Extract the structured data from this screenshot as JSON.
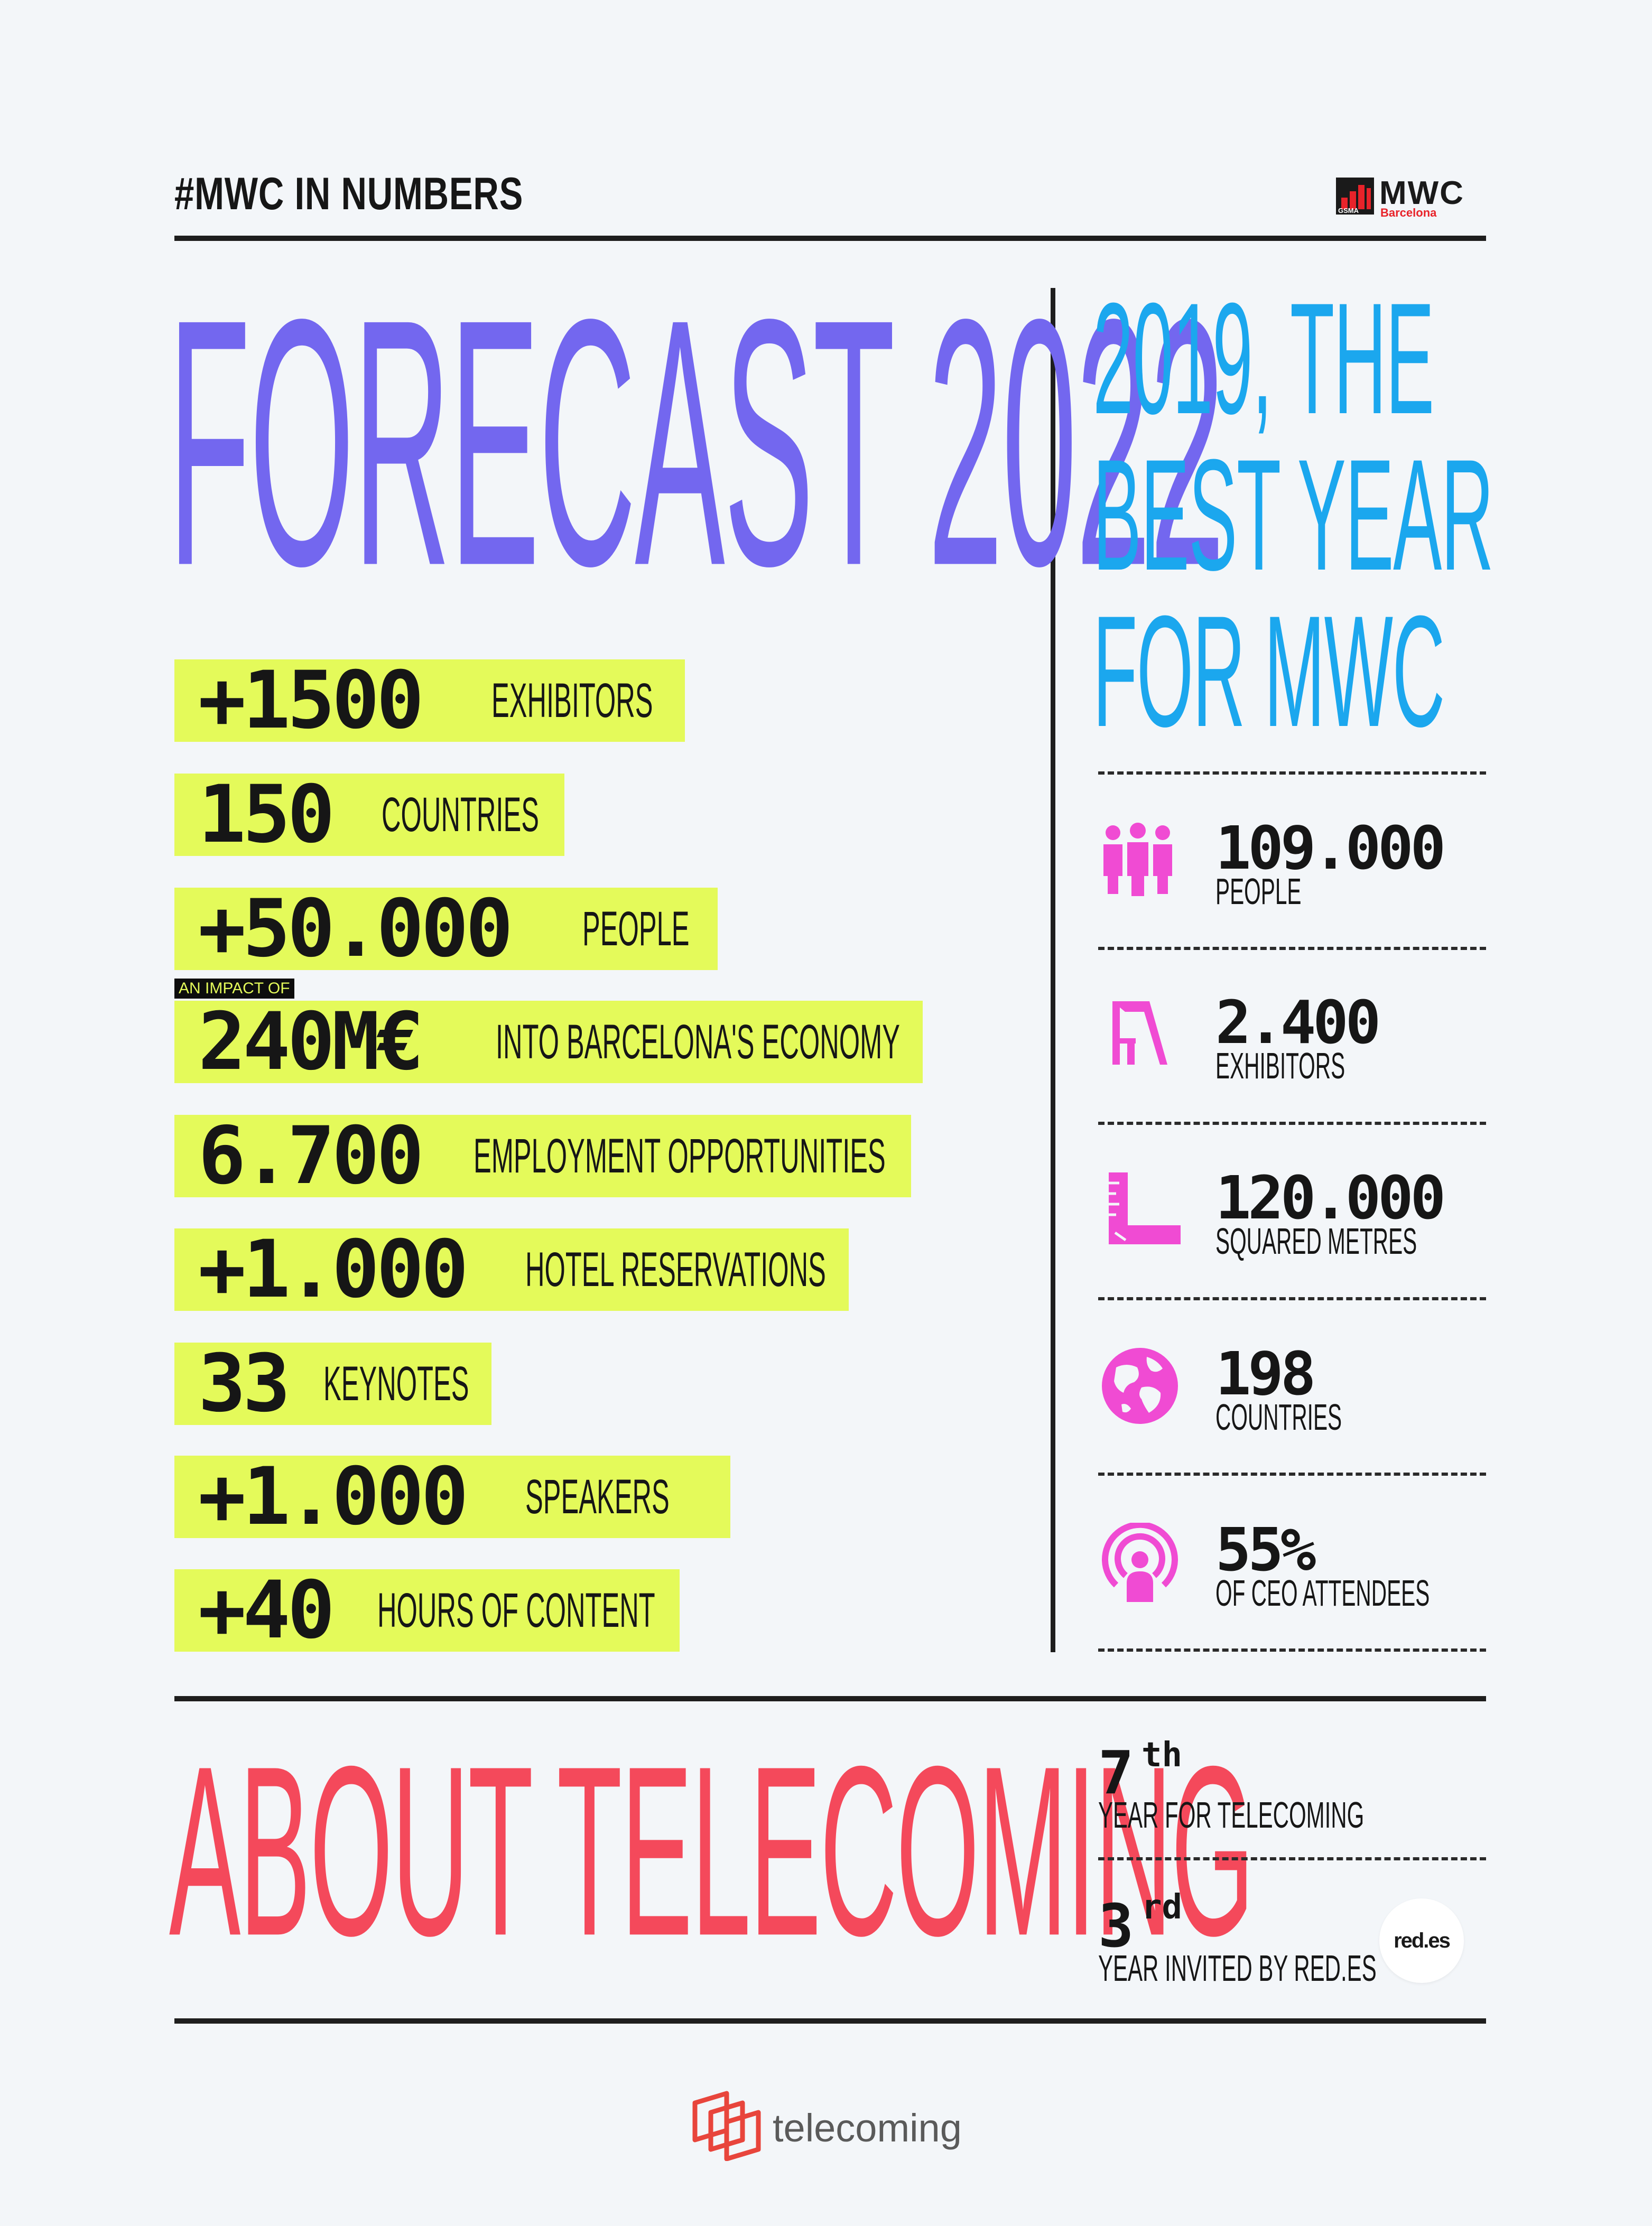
{
  "header": {
    "title": "#MWC IN NUMBERS",
    "logo_text": "MWC",
    "logo_sub": "Barcelona",
    "logo_gsma": "GSMA"
  },
  "forecast": {
    "title": "FORECAST 2022",
    "impact_tag": "AN IMPACT OF",
    "stats": [
      {
        "number": "+1500",
        "label": "EXHIBITORS"
      },
      {
        "number": "150",
        "label": "COUNTRIES"
      },
      {
        "number": "+50.000",
        "label": "PEOPLE"
      },
      {
        "number": "240M€",
        "label": "INTO BARCELONA'S ECONOMY"
      },
      {
        "number": "6.700",
        "label": "EMPLOYMENT OPPORTUNITIES"
      },
      {
        "number": "+1.000",
        "label": "HOTEL RESERVATIONS"
      },
      {
        "number": "33",
        "label": "KEYNOTES"
      },
      {
        "number": "+1.000",
        "label": "SPEAKERS"
      },
      {
        "number": "+40",
        "label": "HOURS OF CONTENT"
      }
    ]
  },
  "best_year": {
    "title_lines": [
      "2019, THE",
      "BEST YEAR",
      "FOR MWC"
    ],
    "stats": [
      {
        "number": "109.000",
        "label": "PEOPLE",
        "icon": "people-icon"
      },
      {
        "number": "2.400",
        "label": "EXHIBITORS",
        "icon": "exhibitor-stand-icon"
      },
      {
        "number": "120.000",
        "label": "SQUARED METRES",
        "icon": "ruler-icon"
      },
      {
        "number": "198",
        "label": "COUNTRIES",
        "icon": "globe-icon"
      },
      {
        "number": "55%",
        "label": "OF CEO ATTENDEES",
        "icon": "broadcast-person-icon"
      }
    ]
  },
  "about": {
    "title": "ABOUT TELECOMING",
    "items": [
      {
        "number": "7",
        "sup": "th",
        "label": "YEAR FOR TELECOMING"
      },
      {
        "number": "3",
        "sup": "rd",
        "label": "YEAR INVITED BY RED.ES"
      }
    ],
    "partner_logo": "red.es"
  },
  "footer": {
    "brand": "telecoming"
  },
  "colors": {
    "background": "#f3f6f9",
    "forecast_purple": "#7367ef",
    "best_year_blue": "#1ba7ee",
    "about_red": "#f4495b",
    "highlight_yellow": "#e4fa5a",
    "icon_pink": "#f04bd3"
  }
}
